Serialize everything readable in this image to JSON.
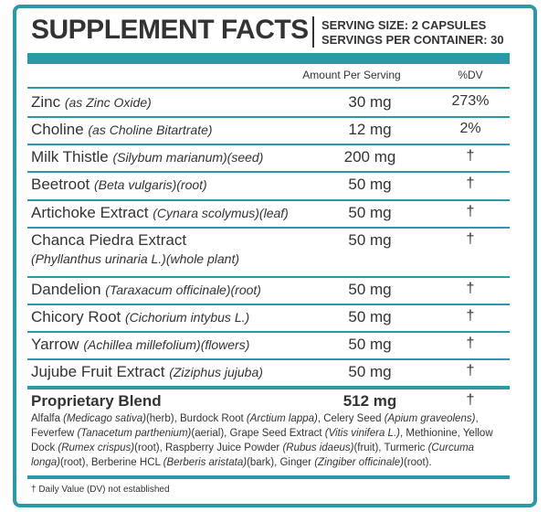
{
  "header": {
    "title": "SUPPLEMENT FACTS",
    "serving_size": "SERVING SIZE: 2 CAPSULES",
    "servings_per_container": "SERVINGS PER CONTAINER: 30"
  },
  "columns": {
    "amount": "Amount Per Serving",
    "dv": "%DV"
  },
  "rows": [
    {
      "name": "Zinc",
      "detail": "(as Zinc Oxide)",
      "amount": "30 mg",
      "dv": "273%"
    },
    {
      "name": "Choline",
      "detail": "(as Choline Bitartrate)",
      "amount": "12 mg",
      "dv": "2%"
    },
    {
      "name": "Milk Thistle",
      "detail": "(Silybum marianum)(seed)",
      "amount": "200 mg",
      "dv": "†"
    },
    {
      "name": "Beetroot",
      "detail": "(Beta vulgaris)(root)",
      "amount": "50 mg",
      "dv": "†"
    },
    {
      "name": "Artichoke Extract",
      "detail": "(Cynara scolymus)(leaf)",
      "amount": "50 mg",
      "dv": "†"
    },
    {
      "name": "Chanca Piedra Extract",
      "detail": "(Phyllanthus urinaria L.)(whole plant)",
      "amount": "50 mg",
      "dv": "†"
    },
    {
      "name": "Dandelion",
      "detail": "(Taraxacum officinale)(root)",
      "amount": "50 mg",
      "dv": "†"
    },
    {
      "name": "Chicory Root",
      "detail": "(Cichorium intybus L.)",
      "amount": "50 mg",
      "dv": "†"
    },
    {
      "name": "Yarrow",
      "detail": "(Achillea millefolium)(flowers)",
      "amount": "50 mg",
      "dv": "†"
    },
    {
      "name": "Jujube Fruit Extract",
      "detail": "(Ziziphus jujuba)",
      "amount": "50 mg",
      "dv": "†"
    }
  ],
  "blend": {
    "name": "Proprietary Blend",
    "amount": "512 mg",
    "dv": "†",
    "description": [
      "Alfalfa ",
      "(Medicago sativa)",
      "(herb), Burdock Root ",
      "(Arctium lappa)",
      ", Celery Seed ",
      "(Apium graveolens)",
      ", Feverfew ",
      "(Tanacetum parthenium)",
      "(aerial), Grape Seed Extract ",
      "(Vitis vinifera L.)",
      ", Methionine, Yellow Dock ",
      "(Rumex crispus)",
      "(root), Raspberry Juice Powder ",
      "(Rubus idaeus)",
      "(fruit), Turmeric ",
      "(Curcuma longa)",
      "(root), Berberine HCL ",
      "(Berberis aristata)",
      "(bark), Ginger ",
      "(Zingiber officinale)",
      "(root)."
    ]
  },
  "footnote": "† Daily Value (DV) not established"
}
